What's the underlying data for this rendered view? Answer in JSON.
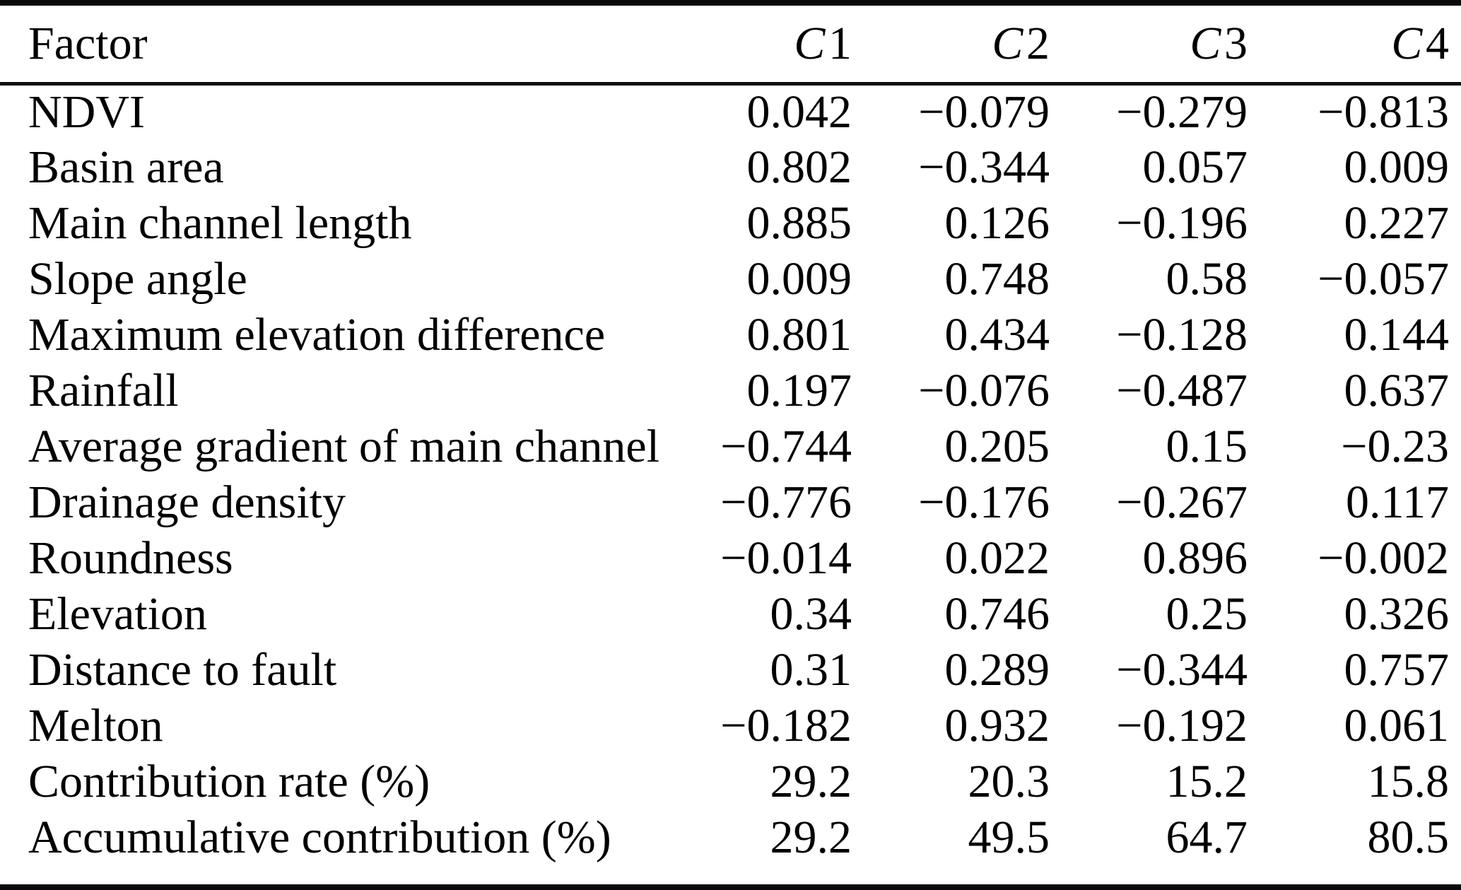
{
  "colors": {
    "background": "#ffffff",
    "text": "#000000",
    "rule": "#0a0a0a"
  },
  "table": {
    "header": {
      "factor_label": "Factor",
      "component_columns": [
        {
          "letter": "C",
          "number": "1"
        },
        {
          "letter": "C",
          "number": "2"
        },
        {
          "letter": "C",
          "number": "3"
        },
        {
          "letter": "C",
          "number": "4"
        }
      ]
    },
    "rows": [
      {
        "factor": "NDVI",
        "values": [
          "0.042",
          "−0.079",
          "−0.279",
          "−0.813"
        ]
      },
      {
        "factor": "Basin area",
        "values": [
          "0.802",
          "−0.344",
          "0.057",
          "0.009"
        ]
      },
      {
        "factor": "Main channel length",
        "values": [
          "0.885",
          "0.126",
          "−0.196",
          "0.227"
        ]
      },
      {
        "factor": "Slope angle",
        "values": [
          "0.009",
          "0.748",
          "0.58",
          "−0.057"
        ]
      },
      {
        "factor": "Maximum elevation difference",
        "values": [
          "0.801",
          "0.434",
          "−0.128",
          "0.144"
        ]
      },
      {
        "factor": "Rainfall",
        "values": [
          "0.197",
          "−0.076",
          "−0.487",
          "0.637"
        ]
      },
      {
        "factor": "Average gradient of main channel",
        "values": [
          "−0.744",
          "0.205",
          "0.15",
          "−0.23"
        ]
      },
      {
        "factor": "Drainage density",
        "values": [
          "−0.776",
          "−0.176",
          "−0.267",
          "0.117"
        ]
      },
      {
        "factor": "Roundness",
        "values": [
          "−0.014",
          "0.022",
          "0.896",
          "−0.002"
        ]
      },
      {
        "factor": "Elevation",
        "values": [
          "0.34",
          "0.746",
          "0.25",
          "0.326"
        ]
      },
      {
        "factor": "Distance to fault",
        "values": [
          "0.31",
          "0.289",
          "−0.344",
          "0.757"
        ]
      },
      {
        "factor": "Melton",
        "values": [
          "−0.182",
          "0.932",
          "−0.192",
          "0.061"
        ]
      },
      {
        "factor": "Contribution rate (%)",
        "values": [
          "29.2",
          "20.3",
          "15.2",
          "15.8"
        ]
      },
      {
        "factor": "Accumulative contribution (%)",
        "values": [
          "29.2",
          "49.5",
          "64.7",
          "80.5"
        ]
      }
    ]
  }
}
